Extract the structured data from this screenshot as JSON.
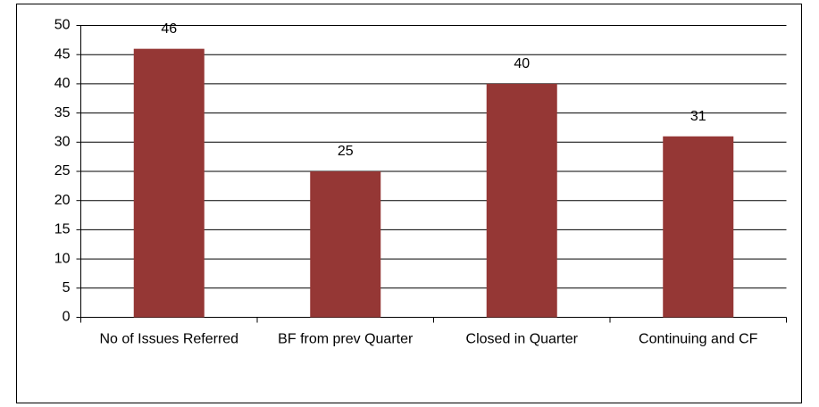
{
  "chart_data": {
    "type": "bar",
    "categories": [
      "No of Issues Referred",
      "BF from prev Quarter",
      "Closed in Quarter",
      "Continuing and CF"
    ],
    "values": [
      46,
      25,
      40,
      31
    ],
    "color": "#953735",
    "ylim": [
      0,
      50
    ],
    "yticks": [
      0,
      5,
      10,
      15,
      20,
      25,
      30,
      35,
      40,
      45,
      50
    ],
    "grid": true
  }
}
